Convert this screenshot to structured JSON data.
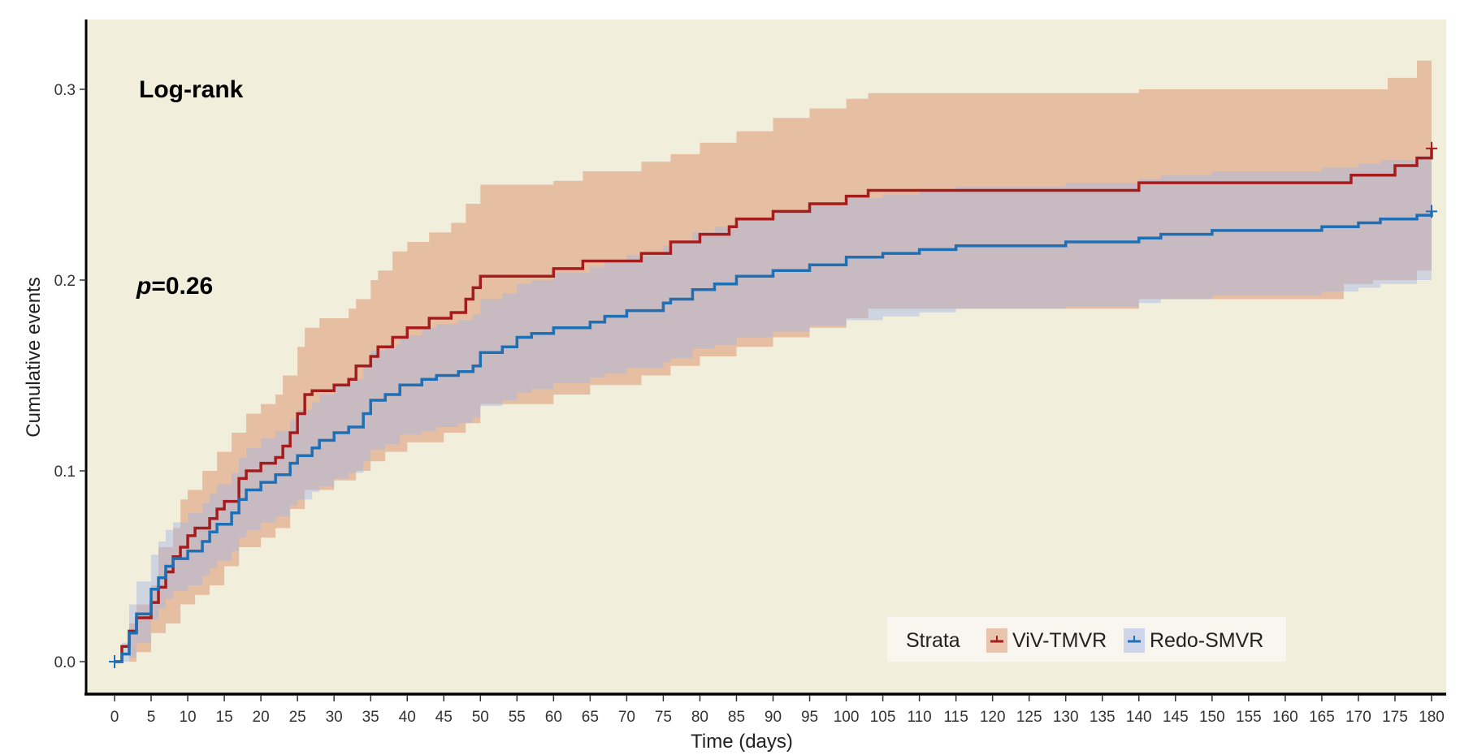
{
  "chart_data": {
    "type": "line",
    "subtype": "kaplan-meier-cumulative-events",
    "title": "",
    "xlabel": "Time (days)",
    "ylabel": "Cumulative events",
    "xlim": [
      0,
      180
    ],
    "ylim": [
      0,
      0.3
    ],
    "x_ticks": [
      0,
      5,
      10,
      15,
      20,
      25,
      30,
      35,
      40,
      45,
      50,
      55,
      60,
      65,
      70,
      75,
      80,
      85,
      90,
      95,
      100,
      105,
      110,
      115,
      120,
      125,
      130,
      135,
      140,
      145,
      150,
      155,
      160,
      165,
      170,
      175,
      180
    ],
    "y_ticks": [
      0.0,
      0.1,
      0.2,
      0.3
    ],
    "y_tick_labels": [
      "0.0",
      "0.1",
      "0.2",
      "0.3"
    ],
    "grid": false,
    "background": "#f2eedc",
    "annotations": {
      "test": "Log-rank",
      "p_prefix": "p",
      "p_value": "=0.26"
    },
    "legend": {
      "title": "Strata",
      "placement": "bottom-right"
    },
    "series": [
      {
        "name": "ViV-TMVR",
        "color": "#a51c1c",
        "band_color": "#d9906a",
        "t": [
          0,
          1,
          2,
          3,
          5,
          6,
          7,
          8,
          9,
          10,
          11,
          13,
          14,
          15,
          17,
          18,
          20,
          22,
          23,
          24,
          25,
          26,
          27,
          30,
          32,
          33,
          35,
          36,
          38,
          40,
          43,
          46,
          48,
          49,
          50,
          60,
          64,
          72,
          76,
          80,
          84,
          85,
          90,
          95,
          100,
          103,
          140,
          169,
          175,
          178,
          180
        ],
        "y": [
          0,
          0.008,
          0.016,
          0.023,
          0.031,
          0.039,
          0.047,
          0.055,
          0.06,
          0.066,
          0.07,
          0.075,
          0.08,
          0.084,
          0.096,
          0.1,
          0.104,
          0.107,
          0.113,
          0.12,
          0.13,
          0.14,
          0.142,
          0.145,
          0.148,
          0.155,
          0.16,
          0.165,
          0.17,
          0.175,
          0.18,
          0.183,
          0.19,
          0.196,
          0.202,
          0.206,
          0.21,
          0.214,
          0.22,
          0.224,
          0.228,
          0.232,
          0.236,
          0.24,
          0.244,
          0.247,
          0.251,
          0.255,
          0.26,
          0.264,
          0.269
        ],
        "upper": {
          "t": [
            0,
            2,
            3,
            5,
            6,
            8,
            9,
            10,
            12,
            14,
            16,
            18,
            20,
            22,
            23,
            25,
            26,
            28,
            32,
            33,
            35,
            36,
            38,
            40,
            43,
            46,
            48,
            50,
            60,
            64,
            72,
            76,
            80,
            85,
            90,
            95,
            100,
            103,
            140,
            174,
            178,
            180
          ],
          "y": [
            0,
            0.02,
            0.03,
            0.04,
            0.06,
            0.07,
            0.085,
            0.09,
            0.1,
            0.11,
            0.12,
            0.13,
            0.135,
            0.14,
            0.15,
            0.165,
            0.175,
            0.18,
            0.185,
            0.19,
            0.2,
            0.205,
            0.215,
            0.22,
            0.225,
            0.23,
            0.24,
            0.25,
            0.252,
            0.257,
            0.262,
            0.266,
            0.272,
            0.278,
            0.285,
            0.29,
            0.295,
            0.298,
            0.3,
            0.306,
            0.315,
            0.315
          ]
        },
        "lower": {
          "t": [
            0,
            3,
            5,
            7,
            9,
            11,
            13,
            15,
            17,
            20,
            22,
            24,
            26,
            30,
            33,
            35,
            37,
            40,
            45,
            48,
            50,
            60,
            65,
            72,
            76,
            80,
            85,
            90,
            95,
            100,
            103,
            140,
            168,
            172,
            178,
            180
          ],
          "y": [
            0,
            0.005,
            0.015,
            0.02,
            0.03,
            0.035,
            0.04,
            0.05,
            0.06,
            0.065,
            0.07,
            0.08,
            0.09,
            0.095,
            0.1,
            0.105,
            0.11,
            0.115,
            0.12,
            0.125,
            0.135,
            0.14,
            0.145,
            0.15,
            0.155,
            0.16,
            0.165,
            0.17,
            0.175,
            0.18,
            0.185,
            0.19,
            0.198,
            0.2,
            0.205,
            0.205
          ]
        }
      },
      {
        "name": "Redo-SMVR",
        "color": "#1f6fb5",
        "band_color": "#a4b4e6",
        "t": [
          0,
          1,
          2,
          3,
          5,
          6,
          7,
          8,
          10,
          12,
          13,
          14,
          16,
          17,
          18,
          20,
          22,
          24,
          25,
          27,
          28,
          30,
          32,
          34,
          35,
          37,
          39,
          42,
          44,
          47,
          49,
          50,
          53,
          55,
          57,
          60,
          65,
          67,
          70,
          75,
          76,
          79,
          82,
          85,
          90,
          95,
          100,
          105,
          110,
          115,
          130,
          140,
          143,
          150,
          165,
          170,
          173,
          178,
          180
        ],
        "y": [
          0,
          0.004,
          0.015,
          0.025,
          0.038,
          0.044,
          0.05,
          0.054,
          0.058,
          0.063,
          0.068,
          0.072,
          0.078,
          0.085,
          0.09,
          0.094,
          0.098,
          0.104,
          0.108,
          0.112,
          0.116,
          0.12,
          0.123,
          0.13,
          0.137,
          0.14,
          0.145,
          0.148,
          0.15,
          0.152,
          0.155,
          0.162,
          0.165,
          0.17,
          0.172,
          0.175,
          0.178,
          0.181,
          0.184,
          0.188,
          0.19,
          0.195,
          0.198,
          0.202,
          0.205,
          0.208,
          0.212,
          0.214,
          0.216,
          0.218,
          0.22,
          0.222,
          0.224,
          0.226,
          0.228,
          0.23,
          0.232,
          0.234,
          0.236
        ],
        "upper": {
          "t": [
            0,
            1,
            2,
            3,
            5,
            6,
            7,
            8,
            10,
            12,
            13,
            14,
            16,
            17,
            18,
            20,
            22,
            24,
            25,
            27,
            28,
            30,
            32,
            34,
            35,
            37,
            39,
            42,
            44,
            47,
            49,
            50,
            53,
            55,
            57,
            60,
            65,
            67,
            70,
            75,
            76,
            79,
            82,
            85,
            90,
            95,
            100,
            105,
            110,
            115,
            130,
            140,
            143,
            150,
            165,
            170,
            173,
            178,
            180
          ],
          "y": [
            0,
            0.01,
            0.03,
            0.042,
            0.056,
            0.063,
            0.069,
            0.073,
            0.078,
            0.083,
            0.088,
            0.093,
            0.099,
            0.107,
            0.112,
            0.117,
            0.121,
            0.127,
            0.132,
            0.136,
            0.14,
            0.145,
            0.148,
            0.155,
            0.163,
            0.166,
            0.171,
            0.175,
            0.177,
            0.179,
            0.182,
            0.19,
            0.193,
            0.198,
            0.2,
            0.204,
            0.207,
            0.21,
            0.213,
            0.218,
            0.22,
            0.225,
            0.228,
            0.232,
            0.236,
            0.239,
            0.243,
            0.245,
            0.247,
            0.249,
            0.251,
            0.253,
            0.255,
            0.257,
            0.259,
            0.261,
            0.263,
            0.265,
            0.267
          ]
        },
        "lower": {
          "t": [
            0,
            1,
            2,
            3,
            5,
            6,
            7,
            8,
            10,
            12,
            13,
            14,
            16,
            17,
            18,
            20,
            22,
            24,
            25,
            27,
            28,
            30,
            32,
            34,
            35,
            37,
            39,
            42,
            44,
            47,
            49,
            50,
            53,
            55,
            57,
            60,
            65,
            67,
            70,
            75,
            76,
            79,
            82,
            85,
            90,
            95,
            100,
            105,
            110,
            115,
            130,
            140,
            143,
            150,
            165,
            170,
            173,
            178,
            180
          ],
          "y": [
            0,
            0,
            0.002,
            0.01,
            0.022,
            0.028,
            0.033,
            0.037,
            0.04,
            0.045,
            0.049,
            0.053,
            0.058,
            0.065,
            0.069,
            0.073,
            0.076,
            0.082,
            0.085,
            0.089,
            0.092,
            0.096,
            0.099,
            0.105,
            0.111,
            0.114,
            0.119,
            0.121,
            0.123,
            0.125,
            0.128,
            0.134,
            0.137,
            0.141,
            0.143,
            0.146,
            0.149,
            0.151,
            0.154,
            0.157,
            0.159,
            0.164,
            0.166,
            0.17,
            0.173,
            0.176,
            0.179,
            0.181,
            0.183,
            0.185,
            0.186,
            0.188,
            0.19,
            0.192,
            0.194,
            0.196,
            0.198,
            0.2,
            0.204
          ]
        }
      }
    ]
  }
}
